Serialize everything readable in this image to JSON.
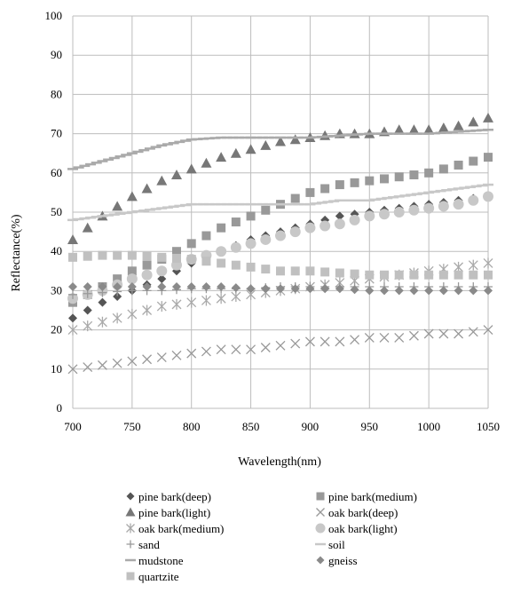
{
  "chart_data": {
    "type": "scatter",
    "title": "",
    "xlabel": "Wavelength(nm)",
    "ylabel": "Reflectance(%)",
    "xlim": [
      700,
      1050
    ],
    "ylim": [
      0,
      100
    ],
    "x_ticks": [
      "700",
      "750",
      "800",
      "850",
      "900",
      "950",
      "1000",
      "1050"
    ],
    "y_ticks": [
      "0",
      "10",
      "20",
      "30",
      "40",
      "50",
      "60",
      "70",
      "80",
      "90",
      "100"
    ],
    "grid": true,
    "legend_position": "bottom",
    "series": [
      {
        "name": "pine bark(deep)",
        "marker": "diamond",
        "color": "#555555",
        "x": [
          700,
          725,
          750,
          775,
          800,
          825,
          850,
          875,
          900,
          925,
          950,
          975,
          1000,
          1025,
          1050
        ],
        "y": [
          23,
          27,
          30,
          33,
          37,
          40,
          43,
          45,
          47,
          49,
          50,
          51,
          52,
          53,
          54
        ]
      },
      {
        "name": "pine bark(medium)",
        "marker": "square",
        "color": "#999999",
        "x": [
          700,
          725,
          750,
          775,
          800,
          825,
          850,
          875,
          900,
          925,
          950,
          975,
          1000,
          1025,
          1050
        ],
        "y": [
          27,
          31,
          35,
          38,
          42,
          46,
          49,
          52,
          55,
          57,
          58,
          59,
          60,
          62,
          64
        ]
      },
      {
        "name": "pine bark(light)",
        "marker": "triangle",
        "color": "#777777",
        "x": [
          700,
          725,
          750,
          775,
          800,
          825,
          850,
          875,
          900,
          925,
          950,
          975,
          1000,
          1025,
          1050
        ],
        "y": [
          43,
          49,
          54,
          58,
          61,
          64,
          66,
          68,
          69,
          70,
          70,
          71,
          71,
          72,
          74
        ]
      },
      {
        "name": "oak bark(deep)",
        "marker": "x",
        "color": "#999999",
        "x": [
          700,
          725,
          750,
          775,
          800,
          825,
          850,
          875,
          900,
          925,
          950,
          975,
          1000,
          1025,
          1050
        ],
        "y": [
          10,
          11,
          12,
          13,
          14,
          15,
          15,
          16,
          17,
          17,
          18,
          18,
          19,
          19,
          20
        ]
      },
      {
        "name": "oak bark(medium)",
        "marker": "asterisk",
        "color": "#aaaaaa",
        "x": [
          700,
          725,
          750,
          775,
          800,
          825,
          850,
          875,
          900,
          925,
          950,
          975,
          1000,
          1025,
          1050
        ],
        "y": [
          20,
          22,
          24,
          26,
          27,
          28,
          29,
          30,
          31,
          32,
          33,
          34,
          35,
          36,
          37
        ]
      },
      {
        "name": "oak bark(light)",
        "marker": "circle",
        "color": "#c8c8c8",
        "x": [
          700,
          725,
          750,
          775,
          800,
          825,
          850,
          875,
          900,
          925,
          950,
          975,
          1000,
          1025,
          1050
        ],
        "y": [
          28,
          30,
          33,
          35,
          38,
          40,
          42,
          44,
          46,
          47,
          49,
          50,
          51,
          52,
          54
        ]
      },
      {
        "name": "sand",
        "marker": "plus",
        "color": "#999999",
        "x": [
          700,
          725,
          750,
          775,
          800,
          825,
          850,
          875,
          900,
          925,
          950,
          975,
          1000,
          1025,
          1050
        ],
        "y": [
          29,
          29.5,
          30,
          30,
          30.5,
          30.5,
          30.5,
          31,
          31,
          31,
          31,
          31,
          31,
          31,
          31
        ]
      },
      {
        "name": "soil",
        "marker": "dash",
        "color": "#c8c8c8",
        "x": [
          700,
          725,
          750,
          775,
          800,
          825,
          850,
          875,
          900,
          925,
          950,
          975,
          1000,
          1025,
          1050
        ],
        "y": [
          48,
          49,
          50,
          51,
          52,
          52,
          52,
          52,
          52,
          53,
          53,
          54,
          55,
          56,
          57
        ]
      },
      {
        "name": "mudstone",
        "marker": "dash",
        "color": "#aaaaaa",
        "x": [
          700,
          725,
          750,
          775,
          800,
          825,
          850,
          875,
          900,
          925,
          950,
          975,
          1000,
          1025,
          1050
        ],
        "y": [
          61,
          63,
          65,
          67,
          68.5,
          69,
          69,
          69,
          69,
          69.5,
          70,
          70,
          70,
          70.5,
          71
        ]
      },
      {
        "name": "gneiss",
        "marker": "diamond",
        "color": "#8a8a8a",
        "x": [
          700,
          725,
          750,
          775,
          800,
          825,
          850,
          875,
          900,
          925,
          950,
          975,
          1000,
          1025,
          1050
        ],
        "y": [
          31,
          31,
          31,
          31,
          31,
          31,
          30.5,
          30.5,
          30.5,
          30.5,
          30,
          30,
          30,
          30,
          30
        ]
      },
      {
        "name": "quartzite",
        "marker": "square",
        "color": "#c0c0c0",
        "x": [
          700,
          725,
          750,
          775,
          800,
          825,
          850,
          875,
          900,
          925,
          950,
          975,
          1000,
          1025,
          1050
        ],
        "y": [
          38.5,
          39,
          39,
          38.5,
          38,
          37,
          36,
          35,
          35,
          34.5,
          34,
          34,
          34,
          34,
          34
        ]
      }
    ]
  }
}
